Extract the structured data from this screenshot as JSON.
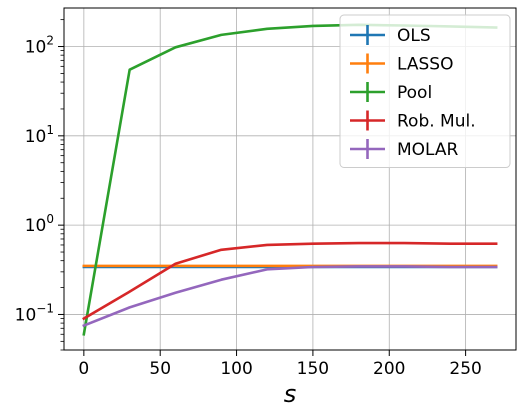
{
  "chart_data": {
    "type": "line",
    "title": "",
    "xlabel": "s",
    "ylabel": "",
    "yscale": "log",
    "xlim": [
      -13,
      283
    ],
    "ylim": [
      0.04,
      270
    ],
    "xticks": [
      0,
      50,
      100,
      150,
      200,
      250
    ],
    "xtick_labels": [
      "0",
      "50",
      "100",
      "150",
      "200",
      "250"
    ],
    "yticks": [
      0.1,
      1,
      10,
      100
    ],
    "ytick_labels": [
      {
        "base": "10",
        "exp": "−1"
      },
      {
        "base": "10",
        "exp": "0"
      },
      {
        "base": "10",
        "exp": "1"
      },
      {
        "base": "10",
        "exp": "2"
      }
    ],
    "grid": true,
    "legend_position": "top-right",
    "x": [
      0,
      30,
      60,
      90,
      120,
      150,
      180,
      210,
      240,
      270
    ],
    "series": [
      {
        "name": "OLS",
        "color": "#1f77b4",
        "values": [
          0.34,
          0.34,
          0.34,
          0.34,
          0.34,
          0.34,
          0.34,
          0.34,
          0.34,
          0.34
        ]
      },
      {
        "name": "LASSO",
        "color": "#ff7f0e",
        "values": [
          0.35,
          0.35,
          0.35,
          0.35,
          0.35,
          0.35,
          0.35,
          0.35,
          0.35,
          0.35
        ]
      },
      {
        "name": "Pool",
        "color": "#2ca02c",
        "values": [
          0.06,
          55,
          98,
          135,
          158,
          170,
          175,
          172,
          168,
          163
        ]
      },
      {
        "name": "Rob. Mul.",
        "color": "#d62728",
        "values": [
          0.09,
          0.18,
          0.37,
          0.53,
          0.6,
          0.62,
          0.63,
          0.63,
          0.62,
          0.62
        ]
      },
      {
        "name": "MOLAR",
        "color": "#9467bd",
        "values": [
          0.075,
          0.12,
          0.175,
          0.245,
          0.32,
          0.34,
          0.345,
          0.345,
          0.34,
          0.34
        ]
      }
    ]
  }
}
